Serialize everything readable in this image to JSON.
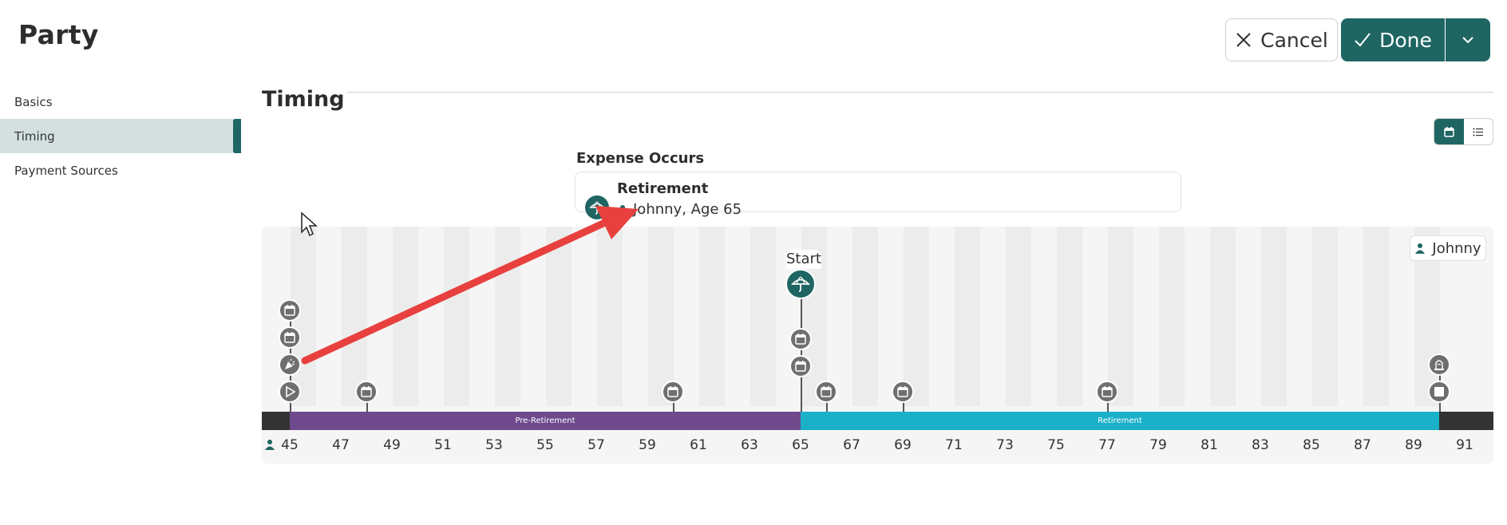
{
  "header": {
    "title": "Party",
    "cancel_label": "Cancel",
    "done_label": "Done"
  },
  "sidebar": {
    "items": [
      {
        "label": "Basics",
        "active": false
      },
      {
        "label": "Timing",
        "active": true
      },
      {
        "label": "Payment Sources",
        "active": false
      }
    ]
  },
  "section": {
    "title": "Timing"
  },
  "view_toggle": {
    "active": "timeline",
    "options": [
      "calendar-icon",
      "list-icon"
    ]
  },
  "expense_occurs": {
    "label": "Expense Occurs",
    "event_name": "Retirement",
    "event_detail": "Johnny, Age 65",
    "icon": "umbrella-icon"
  },
  "timeline": {
    "person": "Johnny",
    "start_label": "Start",
    "ages": [
      "45",
      "47",
      "49",
      "51",
      "53",
      "55",
      "57",
      "59",
      "61",
      "63",
      "65",
      "67",
      "69",
      "71",
      "73",
      "75",
      "77",
      "79",
      "81",
      "83",
      "85",
      "87",
      "89",
      "91"
    ],
    "bands": [
      {
        "label": "Pre-Retirement",
        "color": "#6e4a8c"
      },
      {
        "label": "Retirement",
        "color": "#1ab0c8"
      }
    ],
    "colors": {
      "accent": "#1f6663",
      "marker": "#6f6f6f",
      "annotation_arrow": "#e8403e"
    }
  }
}
